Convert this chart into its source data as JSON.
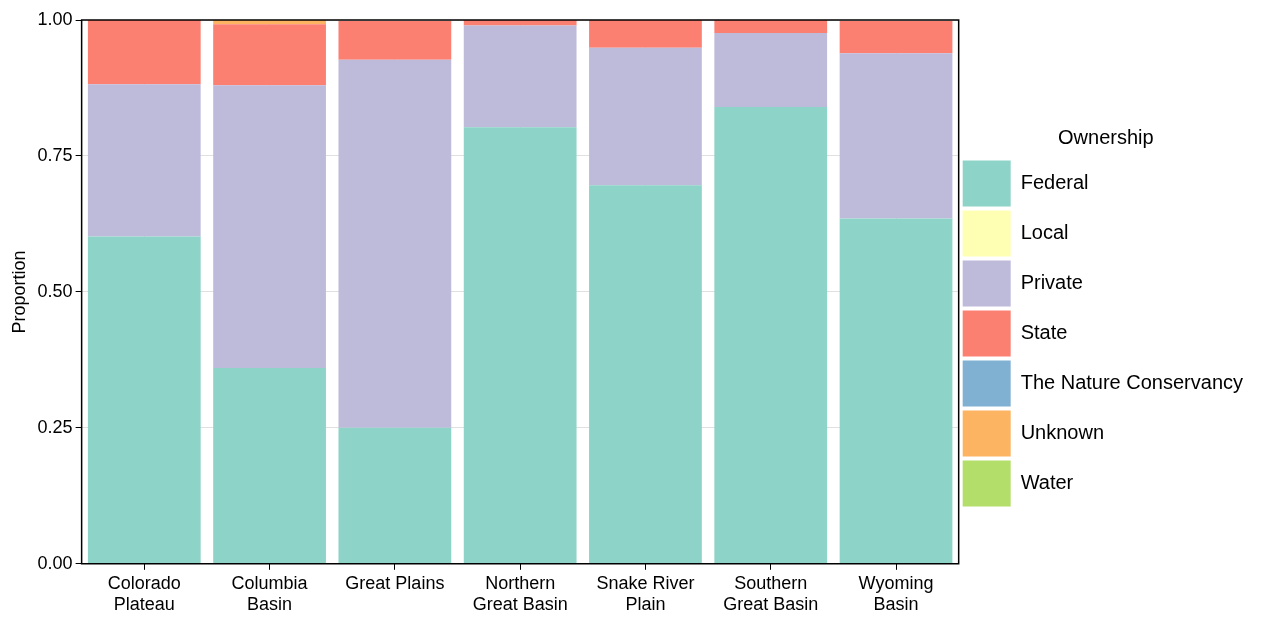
{
  "chart_data": {
    "type": "bar",
    "stacked": true,
    "ylabel": "Proportion",
    "legend_title": "Ownership",
    "legend": "right",
    "grid": true,
    "categories": [
      "Colorado Plateau",
      "Columbia Basin",
      "Great Plains",
      "Northern Great Basin",
      "Snake River Plain",
      "Southern Great Basin",
      "Wyoming Basin"
    ],
    "ylim": [
      0,
      1
    ],
    "yticks": [
      {
        "value": 0,
        "label": "0.00"
      },
      {
        "value": 0.25,
        "label": "0.25"
      },
      {
        "value": 0.5,
        "label": "0.50"
      },
      {
        "value": 0.75,
        "label": "0.75"
      },
      {
        "value": 1,
        "label": "1.00"
      }
    ],
    "series": [
      {
        "name": "Federal",
        "color": "#8dd3c7",
        "values": [
          0.602,
          0.36,
          0.25,
          0.803,
          0.696,
          0.84,
          0.635
        ]
      },
      {
        "name": "Local",
        "color": "#ffffb3",
        "values": [
          0,
          0,
          0,
          0,
          0,
          0,
          0
        ]
      },
      {
        "name": "Private",
        "color": "#bebada",
        "values": [
          0.28,
          0.52,
          0.677,
          0.187,
          0.253,
          0.136,
          0.304
        ]
      },
      {
        "name": "State",
        "color": "#fb8072",
        "values": [
          0.118,
          0.112,
          0.071,
          0.01,
          0.051,
          0.024,
          0.059
        ]
      },
      {
        "name": "The Nature Conservancy",
        "color": "#80b1d3",
        "values": [
          0,
          0,
          0,
          0,
          0,
          0,
          0
        ]
      },
      {
        "name": "Unknown",
        "color": "#fdb462",
        "values": [
          0,
          0.008,
          0,
          0,
          0,
          0,
          0
        ]
      },
      {
        "name": "Water",
        "color": "#b3de69",
        "values": [
          0,
          0,
          null,
          0,
          0,
          0,
          null
        ]
      }
    ]
  }
}
